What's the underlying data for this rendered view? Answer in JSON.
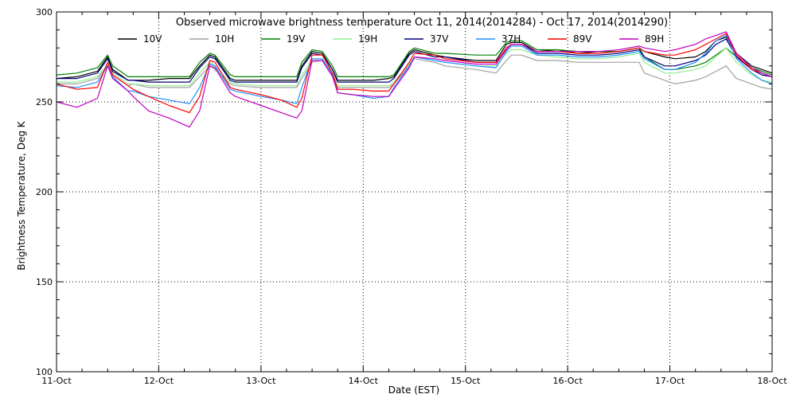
{
  "chart_data": {
    "type": "line",
    "title": "Observed microwave brightness temperature Oct 11, 2014(2014284) - Oct 17, 2014(2014290)",
    "xlabel": "Date (EST)",
    "ylabel": "Brightness Temperature, Deg K",
    "xlim": [
      0,
      7
    ],
    "ylim": [
      100,
      300
    ],
    "x_unit": "days since 11-Oct",
    "categories": [
      "11-Oct",
      "12-Oct",
      "13-Oct",
      "14-Oct",
      "15-Oct",
      "16-Oct",
      "17-Oct",
      "18-Oct"
    ],
    "yticks": [
      100,
      150,
      200,
      250,
      300
    ],
    "grid": "dotted",
    "legend_position": "top",
    "x": [
      0,
      0.2,
      0.4,
      0.5,
      0.55,
      0.7,
      0.75,
      0.9,
      1.1,
      1.3,
      1.4,
      1.5,
      1.55,
      1.7,
      1.75,
      2.0,
      2.2,
      2.35,
      2.4,
      2.5,
      2.6,
      2.7,
      2.75,
      2.9,
      3.1,
      3.25,
      3.3,
      3.45,
      3.5,
      3.7,
      3.8,
      4.1,
      4.3,
      4.4,
      4.45,
      4.55,
      4.7,
      4.9,
      5.1,
      5.3,
      5.5,
      5.6,
      5.7,
      5.75,
      5.95,
      6.05,
      6.25,
      6.35,
      6.45,
      6.55,
      6.65,
      6.8,
      6.9,
      7.0
    ],
    "series": [
      {
        "name": "10V",
        "color": "#000000",
        "values": [
          263,
          264,
          267,
          275,
          268,
          262,
          262,
          262,
          263,
          263,
          270,
          276,
          275,
          263,
          262,
          262,
          262,
          262,
          270,
          278,
          277,
          268,
          262,
          262,
          262,
          263,
          264,
          277,
          279,
          276,
          275,
          273,
          273,
          282,
          283,
          283,
          278,
          279,
          277,
          278,
          278,
          279,
          280,
          278,
          275,
          274,
          275,
          278,
          284,
          286,
          277,
          270,
          268,
          266
        ]
      },
      {
        "name": "10H",
        "color": "#a0a0a0",
        "values": [
          260,
          260,
          263,
          270,
          265,
          259,
          260,
          258,
          258,
          258,
          264,
          270,
          268,
          260,
          259,
          258,
          258,
          258,
          263,
          272,
          273,
          266,
          258,
          258,
          258,
          258,
          260,
          270,
          274,
          272,
          270,
          268,
          266,
          273,
          276,
          276,
          273,
          273,
          272,
          272,
          272,
          272,
          272,
          266,
          262,
          260,
          262,
          264,
          267,
          270,
          263,
          260,
          258,
          257
        ]
      },
      {
        "name": "19V",
        "color": "#008000",
        "values": [
          265,
          266,
          269,
          276,
          270,
          264,
          264,
          264,
          264,
          264,
          272,
          277,
          276,
          265,
          264,
          264,
          264,
          264,
          272,
          279,
          278,
          270,
          264,
          264,
          264,
          264,
          265,
          278,
          280,
          277,
          277,
          276,
          276,
          283,
          284,
          284,
          279,
          279,
          278,
          278,
          278,
          279,
          280,
          275,
          268,
          268,
          270,
          272,
          276,
          280,
          275,
          269,
          267,
          265
        ]
      },
      {
        "name": "19H",
        "color": "#90ee90",
        "values": [
          261,
          261,
          264,
          271,
          266,
          260,
          260,
          259,
          259,
          259,
          266,
          272,
          270,
          261,
          260,
          259,
          259,
          259,
          265,
          273,
          273,
          266,
          259,
          259,
          259,
          259,
          261,
          271,
          275,
          273,
          272,
          270,
          270,
          277,
          279,
          279,
          276,
          275,
          274,
          274,
          275,
          276,
          277,
          272,
          266,
          266,
          268,
          270,
          275,
          280,
          272,
          265,
          262,
          261
        ]
      },
      {
        "name": "37V",
        "color": "#000080",
        "values": [
          263,
          263,
          266,
          274,
          267,
          262,
          262,
          261,
          261,
          261,
          269,
          275,
          274,
          262,
          261,
          261,
          261,
          261,
          269,
          277,
          276,
          268,
          261,
          261,
          261,
          261,
          263,
          276,
          278,
          275,
          275,
          272,
          272,
          280,
          282,
          282,
          277,
          277,
          276,
          276,
          277,
          278,
          279,
          275,
          270,
          270,
          273,
          276,
          282,
          285,
          275,
          268,
          265,
          264
        ]
      },
      {
        "name": "37H",
        "color": "#1e90ff",
        "values": [
          259,
          258,
          261,
          270,
          264,
          256,
          256,
          253,
          251,
          249,
          258,
          271,
          270,
          257,
          256,
          253,
          251,
          249,
          258,
          274,
          274,
          265,
          255,
          254,
          252,
          253,
          258,
          270,
          275,
          273,
          272,
          270,
          269,
          278,
          281,
          281,
          276,
          276,
          275,
          275,
          276,
          277,
          278,
          274,
          268,
          268,
          272,
          277,
          284,
          287,
          274,
          266,
          262,
          260
        ]
      },
      {
        "name": "89V",
        "color": "#ff0000",
        "values": [
          260,
          257,
          258,
          272,
          265,
          259,
          257,
          253,
          248,
          244,
          253,
          273,
          272,
          258,
          257,
          254,
          251,
          247,
          252,
          276,
          276,
          266,
          257,
          257,
          256,
          256,
          260,
          272,
          277,
          276,
          274,
          272,
          272,
          280,
          282,
          282,
          278,
          278,
          277,
          277,
          278,
          279,
          280,
          278,
          276,
          276,
          279,
          282,
          285,
          288,
          276,
          268,
          266,
          264
        ]
      },
      {
        "name": "89H",
        "color": "#c000c0",
        "values": [
          250,
          247,
          252,
          270,
          263,
          256,
          253,
          245,
          241,
          236,
          245,
          270,
          269,
          255,
          253,
          248,
          244,
          241,
          245,
          273,
          273,
          264,
          255,
          254,
          253,
          253,
          257,
          269,
          275,
          274,
          273,
          271,
          271,
          279,
          282,
          282,
          278,
          278,
          278,
          278,
          279,
          280,
          281,
          280,
          278,
          279,
          282,
          285,
          287,
          289,
          277,
          269,
          266,
          264
        ]
      }
    ]
  }
}
